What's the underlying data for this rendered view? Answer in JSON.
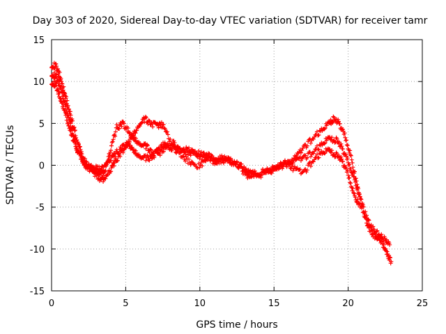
{
  "chart_data": {
    "type": "scatter",
    "title": "Day 303 of 2020, Sidereal Day-to-day VTEC variation (SDTVAR) for receiver tamr",
    "xlabel": "GPS time / hours",
    "ylabel": "SDTVAR / TECUs",
    "xlim": [
      0,
      25
    ],
    "ylim": [
      -15,
      15
    ],
    "xticks": [
      0,
      5,
      10,
      15,
      20,
      25
    ],
    "yticks": [
      -15,
      -10,
      -5,
      0,
      5,
      10,
      15
    ],
    "grid": true,
    "marker": "+",
    "series": [
      {
        "name": "track-a",
        "color": "#ff0000",
        "x": [
          0.0,
          0.3,
          0.6,
          0.9,
          1.2,
          1.5,
          1.8,
          2.1,
          2.4,
          2.8,
          3.2,
          3.6,
          4.0,
          4.3,
          4.7,
          5.1,
          5.5,
          5.9,
          6.3,
          6.7,
          7.1,
          7.5,
          8.0,
          8.6,
          9.2,
          9.8,
          10.4,
          11.0,
          11.6,
          12.2,
          12.8,
          13.4,
          14.0,
          14.6,
          15.2,
          15.8,
          16.4,
          17.0,
          17.6,
          18.2,
          18.7,
          19.0,
          19.4,
          19.8,
          20.2,
          20.6,
          21.0,
          21.4,
          21.8,
          22.2,
          22.6,
          22.9
        ],
        "y": [
          12.0,
          11.8,
          10.5,
          8.5,
          6.5,
          4.5,
          2.5,
          1.0,
          0.0,
          -0.8,
          -1.5,
          -1.8,
          -0.5,
          0.5,
          1.5,
          2.5,
          3.5,
          4.8,
          5.5,
          5.0,
          4.7,
          4.8,
          3.0,
          2.0,
          1.5,
          1.2,
          0.8,
          0.5,
          0.5,
          0.3,
          -0.2,
          -0.8,
          -1.2,
          -0.8,
          -0.3,
          0.0,
          0.8,
          2.0,
          3.2,
          4.2,
          5.0,
          5.5,
          5.0,
          3.5,
          1.0,
          -2.5,
          -5.5,
          -7.5,
          -8.5,
          -9.0,
          -10.5,
          -11.5
        ]
      },
      {
        "name": "track-b",
        "color": "#ff0000",
        "x": [
          0.0,
          0.3,
          0.6,
          0.9,
          1.2,
          1.5,
          1.8,
          2.1,
          2.4,
          2.8,
          3.2,
          3.6,
          4.0,
          4.4,
          4.8,
          5.2,
          5.6,
          6.0,
          6.4,
          6.8,
          7.2,
          7.6,
          8.0,
          8.6,
          9.2,
          9.8,
          10.4,
          11.0,
          11.6,
          12.2,
          12.8,
          13.4,
          14.0,
          14.6,
          15.2,
          15.8,
          16.4,
          17.0,
          17.6,
          18.2,
          18.7,
          19.2,
          19.6,
          20.0,
          20.4,
          20.8,
          21.2,
          21.6,
          22.0,
          22.4,
          22.8
        ],
        "y": [
          11.0,
          10.5,
          9.5,
          7.5,
          5.5,
          3.5,
          1.5,
          0.5,
          -0.3,
          -0.5,
          -0.8,
          -1.0,
          2.0,
          4.5,
          5.0,
          4.0,
          3.0,
          2.5,
          2.2,
          1.5,
          1.2,
          2.0,
          2.3,
          2.0,
          1.8,
          1.5,
          1.2,
          0.8,
          0.6,
          0.4,
          -0.2,
          -1.0,
          -1.0,
          -0.6,
          -0.2,
          0.3,
          0.5,
          0.8,
          1.5,
          2.5,
          3.2,
          3.0,
          2.0,
          0.5,
          -1.5,
          -4.0,
          -6.0,
          -7.5,
          -8.2,
          -8.8,
          -9.5
        ]
      },
      {
        "name": "track-c",
        "color": "#ff0000",
        "x": [
          0.0,
          0.3,
          0.6,
          0.9,
          1.2,
          1.5,
          1.8,
          2.1,
          2.4,
          2.8,
          3.2,
          3.6,
          4.0,
          4.4,
          4.8,
          5.2,
          5.6,
          6.0,
          6.4,
          6.8,
          7.2,
          7.6,
          8.0,
          8.6,
          9.2,
          9.8,
          10.4,
          11.0,
          11.6,
          12.2,
          12.8,
          13.4,
          14.0,
          14.6,
          15.2,
          15.8,
          16.4,
          17.0,
          17.6,
          18.2,
          18.7,
          19.2,
          19.6,
          20.0,
          20.4,
          20.8
        ],
        "y": [
          10.0,
          9.5,
          8.0,
          6.5,
          4.5,
          3.0,
          1.5,
          0.5,
          0.0,
          -0.3,
          -0.5,
          -0.2,
          0.8,
          1.5,
          2.2,
          2.5,
          1.5,
          1.0,
          0.8,
          1.0,
          1.8,
          2.5,
          2.2,
          1.5,
          0.5,
          -0.2,
          0.5,
          1.0,
          0.8,
          0.5,
          -0.5,
          -1.5,
          -1.0,
          -0.5,
          0.0,
          0.2,
          -0.5,
          -1.0,
          0.5,
          1.5,
          1.8,
          1.2,
          0.5,
          -1.0,
          -3.5,
          -5.0
        ]
      }
    ]
  }
}
